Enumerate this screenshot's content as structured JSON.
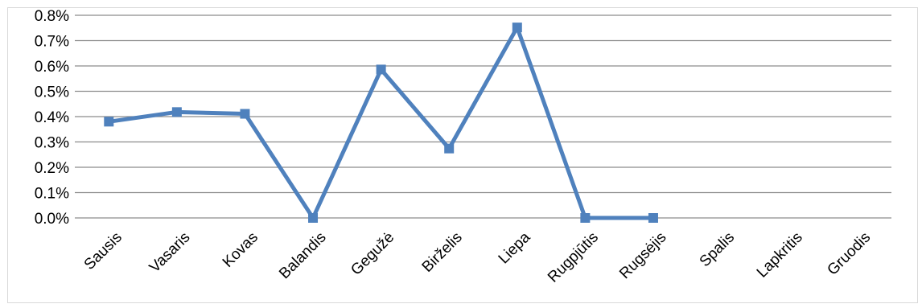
{
  "chart_data": {
    "type": "line",
    "categories": [
      "Sausis",
      "Vasaris",
      "Kovas",
      "Balandis",
      "Gegužė",
      "Birželis",
      "Liepa",
      "Rugpjūtis",
      "Rugsėjis",
      "Spalis",
      "Lapkritis",
      "Gruodis"
    ],
    "series": [
      {
        "values": [
          0.0038,
          0.00418,
          0.00411,
          0.0,
          0.00586,
          0.00274,
          0.00752,
          0.0,
          0.0,
          null,
          null,
          null
        ],
        "color": "#4f81bd",
        "marker": "square"
      }
    ],
    "y_ticks": [
      "0.0%",
      "0.1%",
      "0.2%",
      "0.3%",
      "0.4%",
      "0.5%",
      "0.6%",
      "0.7%",
      "0.8%"
    ],
    "ylim": [
      0,
      0.008
    ],
    "grid": true,
    "legend": "none",
    "title": "",
    "xlabel": "",
    "ylabel": ""
  }
}
